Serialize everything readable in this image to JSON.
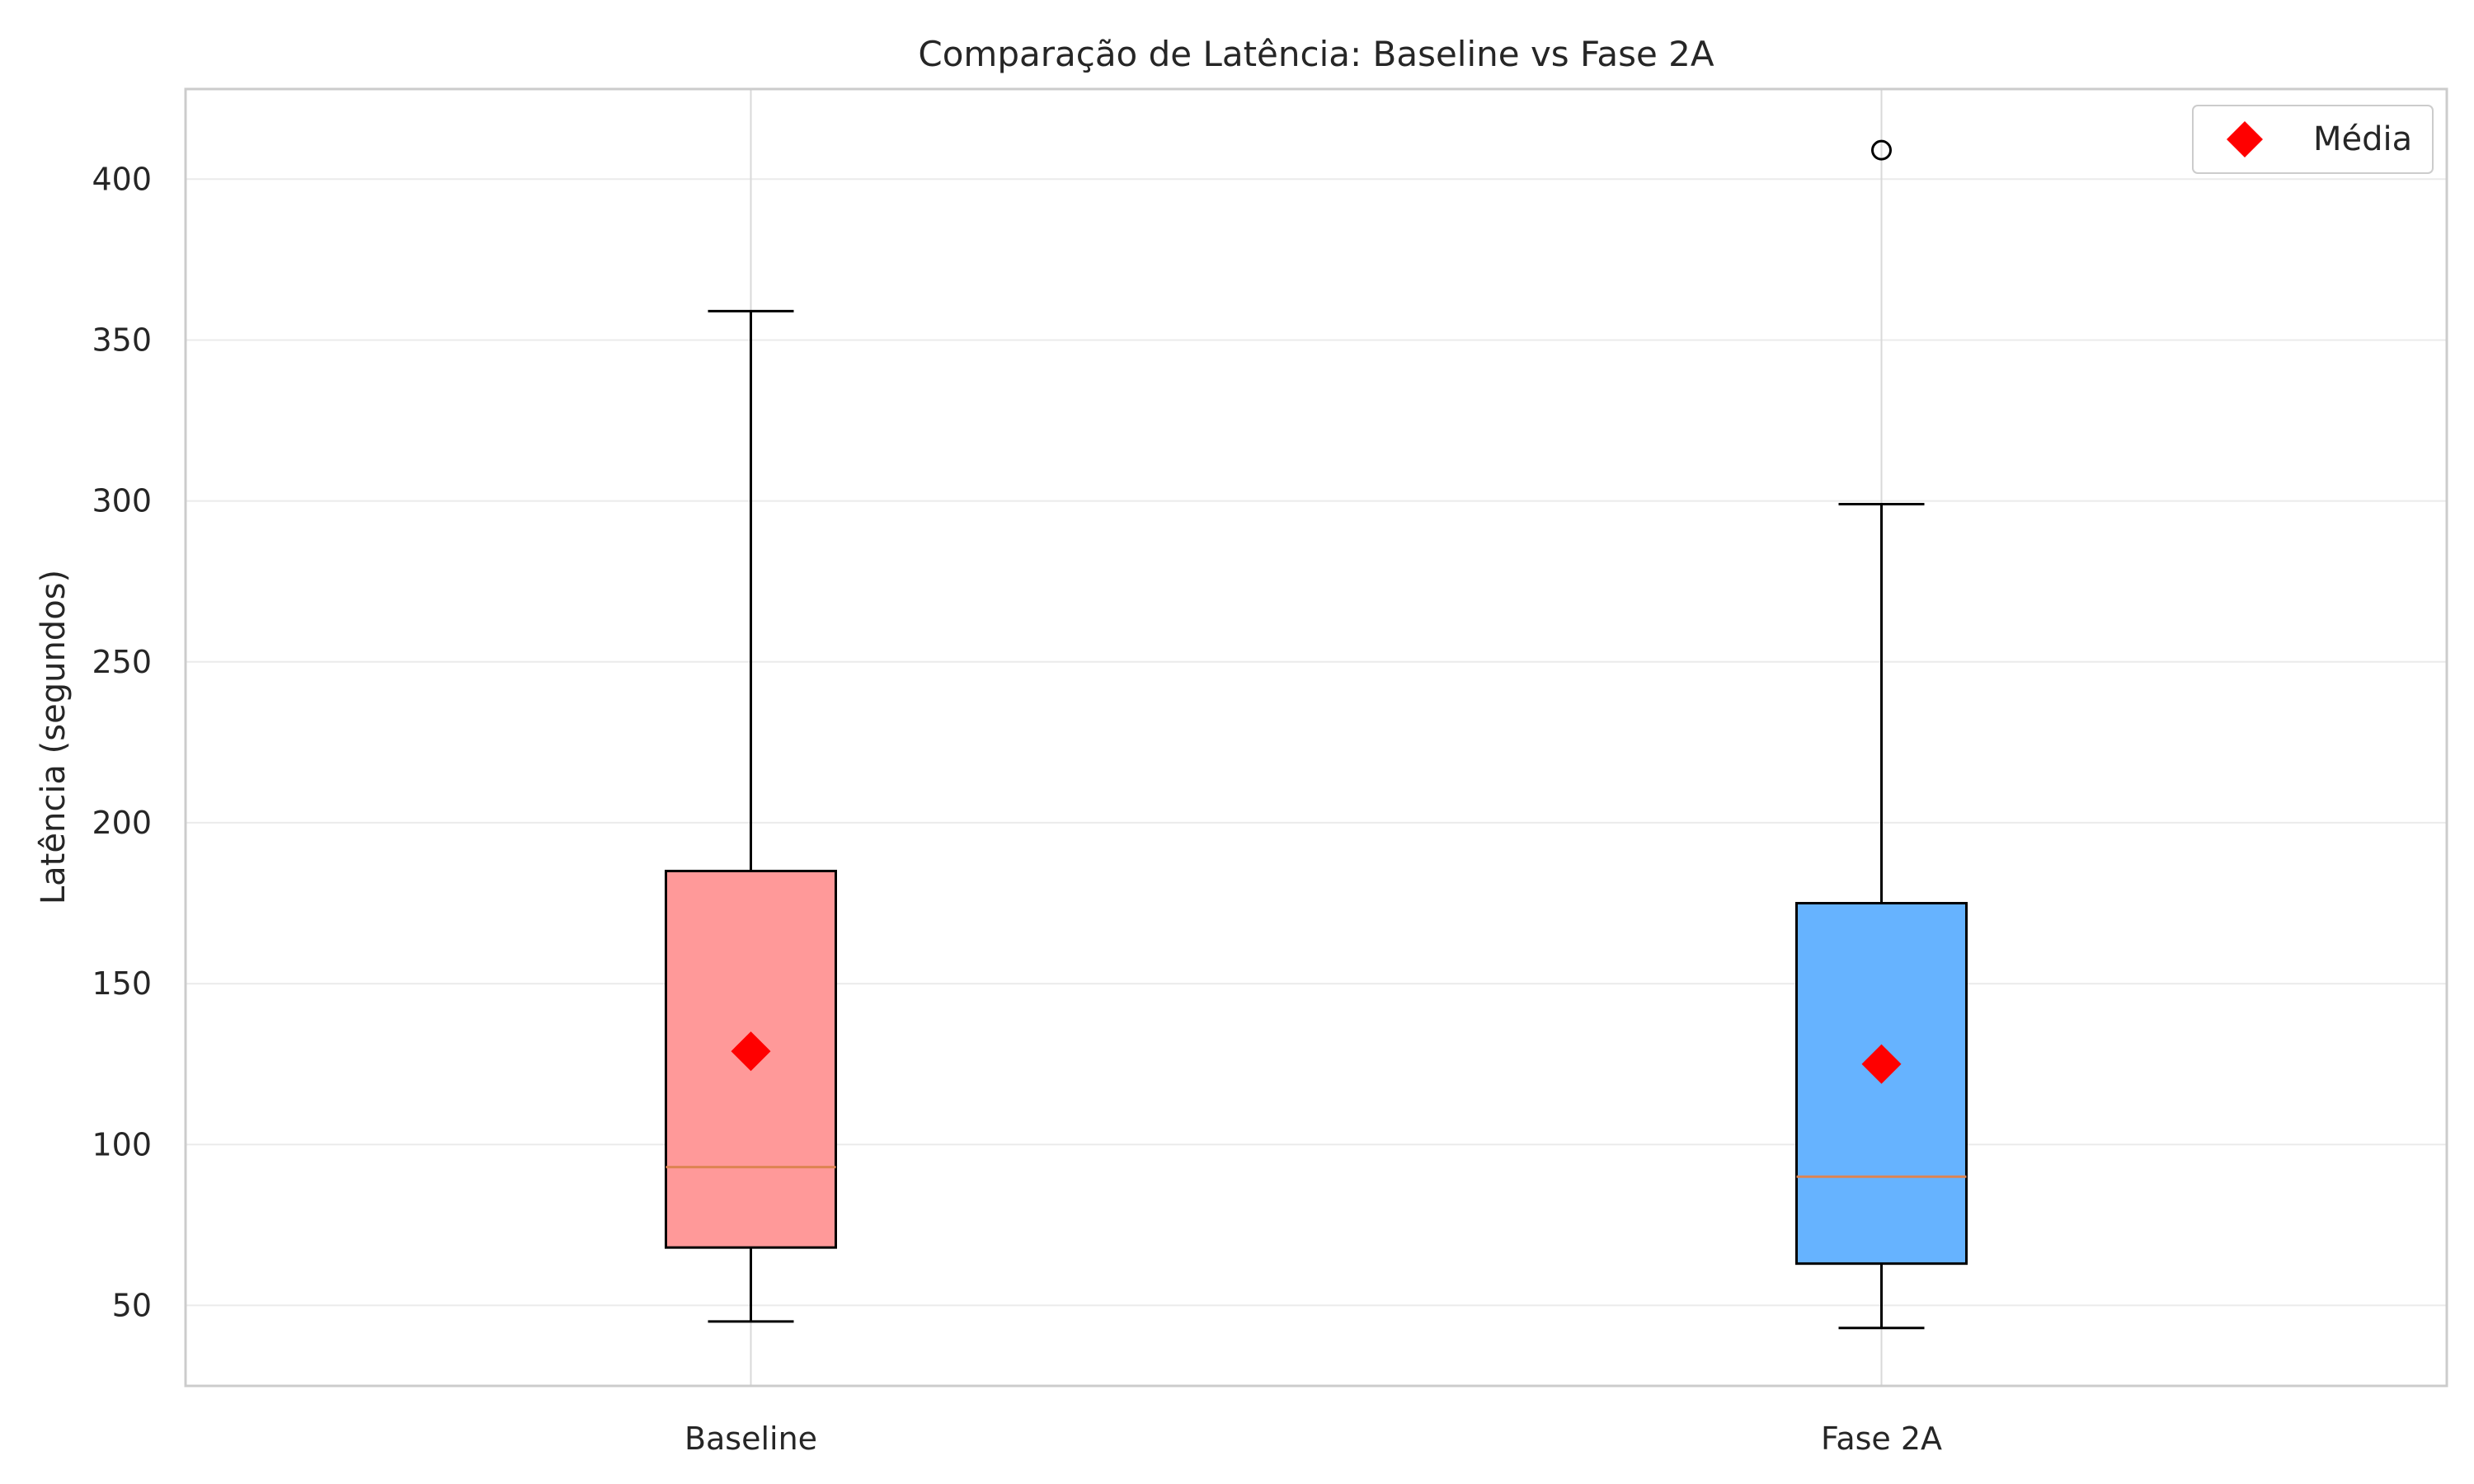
{
  "chart_data": {
    "type": "box",
    "title": "Comparação de Latência: Baseline vs Fase 2A",
    "xlabel": "",
    "ylabel": "Latência (segundos)",
    "categories": [
      "Baseline",
      "Fase 2A"
    ],
    "ylim": [
      25,
      428
    ],
    "yticks": [
      50,
      100,
      150,
      200,
      250,
      300,
      350,
      400
    ],
    "grid": true,
    "legend": {
      "position": "top-right",
      "entries": [
        {
          "label": "Média",
          "marker": "diamond",
          "color": "#ff0000"
        }
      ]
    },
    "boxes": [
      {
        "category": "Baseline",
        "whisker_low": 45,
        "q1": 68,
        "median": 93,
        "q3": 185,
        "whisker_high": 359,
        "mean": 129,
        "outliers": [],
        "color": "#ff9999"
      },
      {
        "category": "Fase 2A",
        "whisker_low": 43,
        "q1": 63,
        "median": 90,
        "q3": 175,
        "whisker_high": 299,
        "mean": 125,
        "outliers": [
          409
        ],
        "color": "#66b3ff"
      }
    ],
    "colors": {
      "median_line": "#dd8452",
      "mean_marker": "#ff0000",
      "box_edge": "#000000",
      "grid": "#ebebeb",
      "spine": "#cccccc"
    }
  }
}
